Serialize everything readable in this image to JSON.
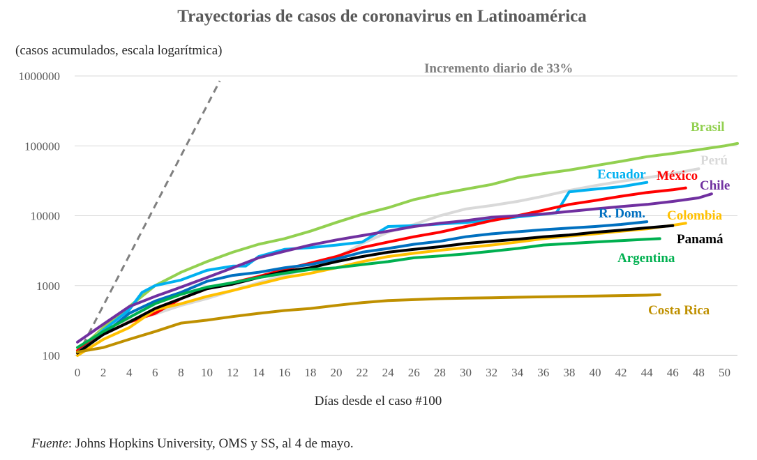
{
  "chart_data": {
    "type": "line",
    "title": "Trayectorias de casos de coronavirus en Latinoamérica",
    "subtitle": "(casos acumulados, escala logarítmica)",
    "xlabel": "Días desde el caso #100",
    "ylabel": "",
    "y_scale": "log",
    "xlim": [
      0,
      51
    ],
    "ylim": [
      100,
      1000000
    ],
    "x_ticks": [
      "0",
      "2",
      "4",
      "6",
      "8",
      "10",
      "12",
      "14",
      "16",
      "18",
      "20",
      "22",
      "24",
      "26",
      "28",
      "30",
      "32",
      "34",
      "36",
      "38",
      "40",
      "42",
      "44",
      "46",
      "48",
      "50"
    ],
    "y_ticks": [
      "100",
      "1000",
      "10000",
      "100000",
      "1000000"
    ],
    "grid": "horizontal",
    "legend": "labels at line ends",
    "annotation": {
      "text": "Incremento diario de 33%",
      "color": "#808080",
      "style": "dashed",
      "x": [
        0,
        11
      ],
      "y": [
        100,
        850000
      ]
    },
    "series": [
      {
        "name": "Brasil",
        "color": "#92D050",
        "x": [
          0,
          2,
          4,
          6,
          8,
          10,
          12,
          14,
          16,
          18,
          20,
          22,
          24,
          26,
          28,
          30,
          32,
          34,
          36,
          38,
          40,
          42,
          44,
          46,
          48,
          50,
          51
        ],
        "y": [
          115,
          250,
          500,
          1000,
          1550,
          2200,
          3000,
          3900,
          4700,
          6000,
          8000,
          10500,
          13000,
          17000,
          20500,
          24000,
          28000,
          35000,
          40000,
          45000,
          52000,
          60000,
          70000,
          78000,
          88000,
          100000,
          108000
        ]
      },
      {
        "name": "Perú",
        "color": "#D9D9D9",
        "x": [
          0,
          2,
          4,
          6,
          8,
          10,
          12,
          14,
          16,
          18,
          20,
          22,
          24,
          26,
          28,
          30,
          32,
          34,
          36,
          38,
          40,
          42,
          44,
          46,
          48
        ],
        "y": [
          115,
          230,
          320,
          390,
          520,
          650,
          850,
          1100,
          1400,
          1800,
          2500,
          4000,
          5800,
          7500,
          10000,
          12500,
          14000,
          16000,
          19000,
          23000,
          27000,
          31000,
          35000,
          40000,
          47000
        ]
      },
      {
        "name": "Ecuador",
        "color": "#00B0F0",
        "x": [
          0,
          2,
          4,
          5,
          6,
          8,
          10,
          12,
          13,
          14,
          16,
          18,
          20,
          22,
          24,
          26,
          28,
          30,
          32,
          34,
          36,
          37,
          38,
          40,
          42,
          44
        ],
        "y": [
          110,
          230,
          450,
          800,
          1000,
          1200,
          1650,
          1900,
          1900,
          2600,
          3300,
          3500,
          3800,
          4200,
          7000,
          7200,
          7600,
          8000,
          8700,
          9600,
          10500,
          11000,
          22000,
          24000,
          26000,
          30000
        ]
      },
      {
        "name": "México",
        "color": "#FF0000",
        "x": [
          0,
          2,
          4,
          6,
          8,
          10,
          12,
          14,
          16,
          18,
          20,
          22,
          24,
          26,
          28,
          30,
          32,
          34,
          36,
          38,
          40,
          42,
          44,
          46,
          47
        ],
        "y": [
          118,
          200,
          300,
          400,
          650,
          900,
          1100,
          1350,
          1700,
          2100,
          2600,
          3500,
          4200,
          5000,
          5800,
          7000,
          8500,
          10000,
          12000,
          14500,
          16500,
          19000,
          21500,
          23500,
          25000
        ]
      },
      {
        "name": "Chile",
        "color": "#7030A0",
        "x": [
          0,
          2,
          4,
          6,
          8,
          10,
          12,
          14,
          16,
          18,
          20,
          22,
          24,
          26,
          28,
          30,
          32,
          34,
          36,
          38,
          40,
          42,
          44,
          46,
          48,
          49
        ],
        "y": [
          155,
          280,
          500,
          700,
          950,
          1300,
          1800,
          2500,
          3100,
          3800,
          4500,
          5200,
          6000,
          7000,
          7800,
          8500,
          9500,
          10000,
          10600,
          11500,
          12500,
          13500,
          14500,
          16000,
          18000,
          20500
        ]
      },
      {
        "name": "R. Dom.",
        "color": "#0070C0",
        "x": [
          0,
          2,
          4,
          6,
          8,
          10,
          12,
          14,
          16,
          18,
          20,
          22,
          24,
          26,
          28,
          30,
          32,
          34,
          36,
          38,
          40,
          42,
          44
        ],
        "y": [
          110,
          200,
          400,
          600,
          800,
          1150,
          1400,
          1550,
          1800,
          2000,
          2400,
          3000,
          3400,
          3900,
          4300,
          5000,
          5500,
          5900,
          6300,
          6650,
          7000,
          7500,
          8200
        ]
      },
      {
        "name": "Colombia",
        "color": "#FFC000",
        "x": [
          0,
          2,
          4,
          6,
          8,
          10,
          12,
          14,
          16,
          18,
          20,
          22,
          24,
          26,
          28,
          30,
          32,
          34,
          36,
          38,
          40,
          42,
          44,
          46,
          47
        ],
        "y": [
          100,
          170,
          250,
          450,
          550,
          700,
          850,
          1050,
          1300,
          1500,
          1800,
          2200,
          2600,
          2900,
          3200,
          3500,
          3800,
          4200,
          4700,
          5100,
          5500,
          6000,
          6500,
          7300,
          7800
        ]
      },
      {
        "name": "Panamá",
        "color": "#000000",
        "x": [
          0,
          2,
          4,
          6,
          8,
          10,
          12,
          14,
          16,
          18,
          20,
          22,
          24,
          26,
          28,
          30,
          32,
          34,
          36,
          38,
          40,
          42,
          44,
          46
        ],
        "y": [
          108,
          200,
          300,
          470,
          650,
          900,
          1050,
          1300,
          1600,
          1800,
          2200,
          2600,
          3000,
          3300,
          3600,
          4000,
          4300,
          4600,
          5000,
          5300,
          5800,
          6200,
          6700,
          7200
        ]
      },
      {
        "name": "Argentina",
        "color": "#00B050",
        "x": [
          0,
          2,
          4,
          6,
          8,
          10,
          12,
          14,
          16,
          18,
          20,
          22,
          24,
          26,
          28,
          30,
          32,
          34,
          36,
          38,
          40,
          42,
          44,
          45
        ],
        "y": [
          130,
          220,
          350,
          550,
          750,
          950,
          1100,
          1300,
          1500,
          1700,
          1800,
          2000,
          2200,
          2500,
          2650,
          2850,
          3100,
          3400,
          3800,
          4000,
          4200,
          4400,
          4600,
          4700
        ]
      },
      {
        "name": "Costa Rica",
        "color": "#BF9000",
        "x": [
          0,
          2,
          4,
          6,
          8,
          10,
          12,
          14,
          16,
          18,
          20,
          22,
          24,
          26,
          28,
          30,
          32,
          34,
          36,
          38,
          40,
          42,
          44,
          45
        ],
        "y": [
          112,
          130,
          170,
          220,
          290,
          320,
          360,
          400,
          440,
          470,
          520,
          570,
          610,
          630,
          650,
          660,
          670,
          680,
          690,
          700,
          710,
          720,
          730,
          740
        ]
      }
    ]
  }
}
